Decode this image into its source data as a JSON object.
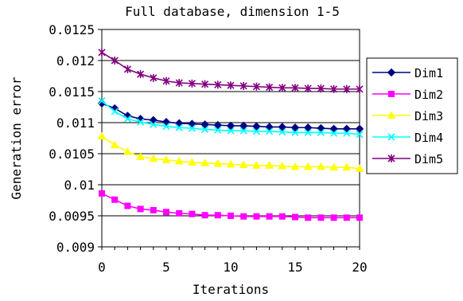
{
  "chart_data": {
    "type": "line",
    "title": "Full database, dimension 1-5",
    "xlabel": "Iterations",
    "ylabel": "Generation error",
    "xlim": [
      0,
      20
    ],
    "ylim": [
      0.009,
      0.0125
    ],
    "x_ticks": [
      0,
      5,
      10,
      15,
      20
    ],
    "y_ticks": [
      0.009,
      0.0095,
      0.01,
      0.0105,
      0.011,
      0.0115,
      0.012,
      0.0125
    ],
    "x_tick_labels": [
      "0",
      "5",
      "10",
      "15",
      "20"
    ],
    "y_tick_labels": [
      "0.009",
      "0.0095",
      "0.01",
      "0.0105",
      "0.011",
      "0.0115",
      "0.012",
      "0.0125"
    ],
    "grid": "horizontal",
    "legend_position": "right",
    "x": [
      0,
      1,
      2,
      3,
      4,
      5,
      6,
      7,
      8,
      9,
      10,
      11,
      12,
      13,
      14,
      15,
      16,
      17,
      18,
      19,
      20
    ],
    "series": [
      {
        "name": "Dim1",
        "color": "#000080",
        "marker": "diamond",
        "values": [
          0.01131,
          0.01123,
          0.01111,
          0.01106,
          0.01104,
          0.01101,
          0.01099,
          0.01098,
          0.01097,
          0.01096,
          0.01095,
          0.01095,
          0.01094,
          0.01093,
          0.01093,
          0.01092,
          0.01092,
          0.01091,
          0.0109,
          0.0109,
          0.0109
        ]
      },
      {
        "name": "Dim2",
        "color": "#ff00ff",
        "marker": "square",
        "values": [
          0.00986,
          0.00976,
          0.00966,
          0.00961,
          0.00959,
          0.00956,
          0.00954,
          0.00953,
          0.00951,
          0.00951,
          0.0095,
          0.00949,
          0.00949,
          0.00949,
          0.00949,
          0.00948,
          0.00947,
          0.00947,
          0.00947,
          0.00947,
          0.00947
        ]
      },
      {
        "name": "Dim3",
        "color": "#ffff00",
        "marker": "triangle",
        "values": [
          0.01078,
          0.01064,
          0.01053,
          0.01045,
          0.01042,
          0.0104,
          0.01038,
          0.01036,
          0.01035,
          0.01034,
          0.01033,
          0.01032,
          0.01031,
          0.01031,
          0.0103,
          0.01029,
          0.01029,
          0.01029,
          0.01028,
          0.01028,
          0.01026
        ]
      },
      {
        "name": "Dim4",
        "color": "#00ffff",
        "marker": "x",
        "values": [
          0.01135,
          0.01118,
          0.01106,
          0.01101,
          0.01097,
          0.01094,
          0.01092,
          0.01091,
          0.01089,
          0.01088,
          0.01087,
          0.01087,
          0.01086,
          0.01086,
          0.01085,
          0.01084,
          0.01084,
          0.01084,
          0.01083,
          0.01083,
          0.01081
        ]
      },
      {
        "name": "Dim5",
        "color": "#800080",
        "marker": "star",
        "values": [
          0.01213,
          0.012,
          0.01186,
          0.01178,
          0.01172,
          0.01167,
          0.01164,
          0.01163,
          0.01162,
          0.01161,
          0.0116,
          0.01159,
          0.01158,
          0.01157,
          0.01156,
          0.01156,
          0.01155,
          0.01155,
          0.01154,
          0.01154,
          0.01154
        ]
      }
    ]
  }
}
